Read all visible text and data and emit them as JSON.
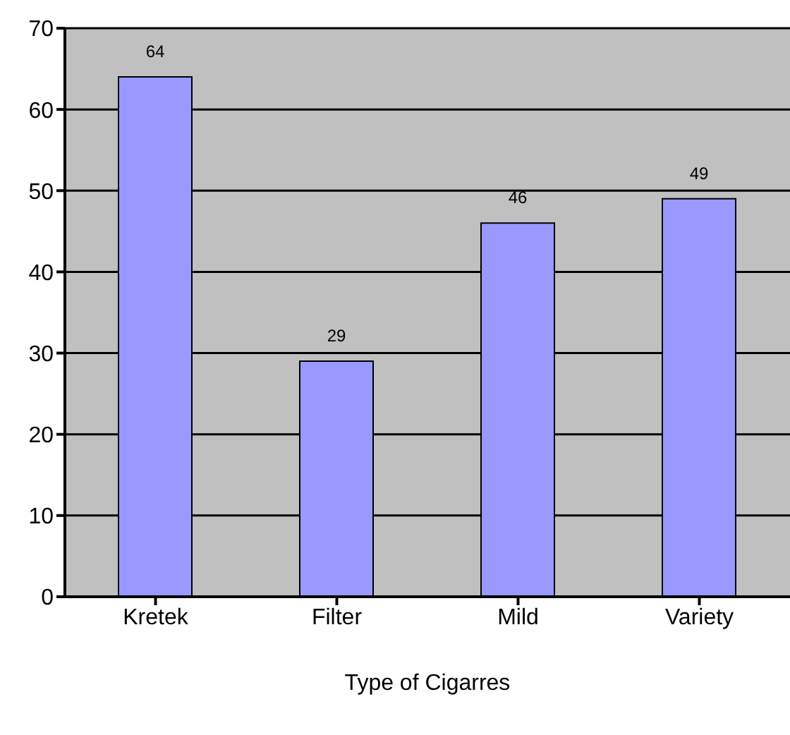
{
  "chart_data": {
    "type": "bar",
    "xlabel": "Type of Cigarres",
    "categories": [
      "Kretek",
      "Filter",
      "Mild",
      "Variety"
    ],
    "values": [
      64,
      29,
      46,
      49
    ],
    "color": "#9999ff",
    "ylim": [
      0,
      70
    ],
    "yticks": [
      0,
      10,
      20,
      30,
      40,
      50,
      60,
      70
    ],
    "grid": "y",
    "data_labels": true
  }
}
